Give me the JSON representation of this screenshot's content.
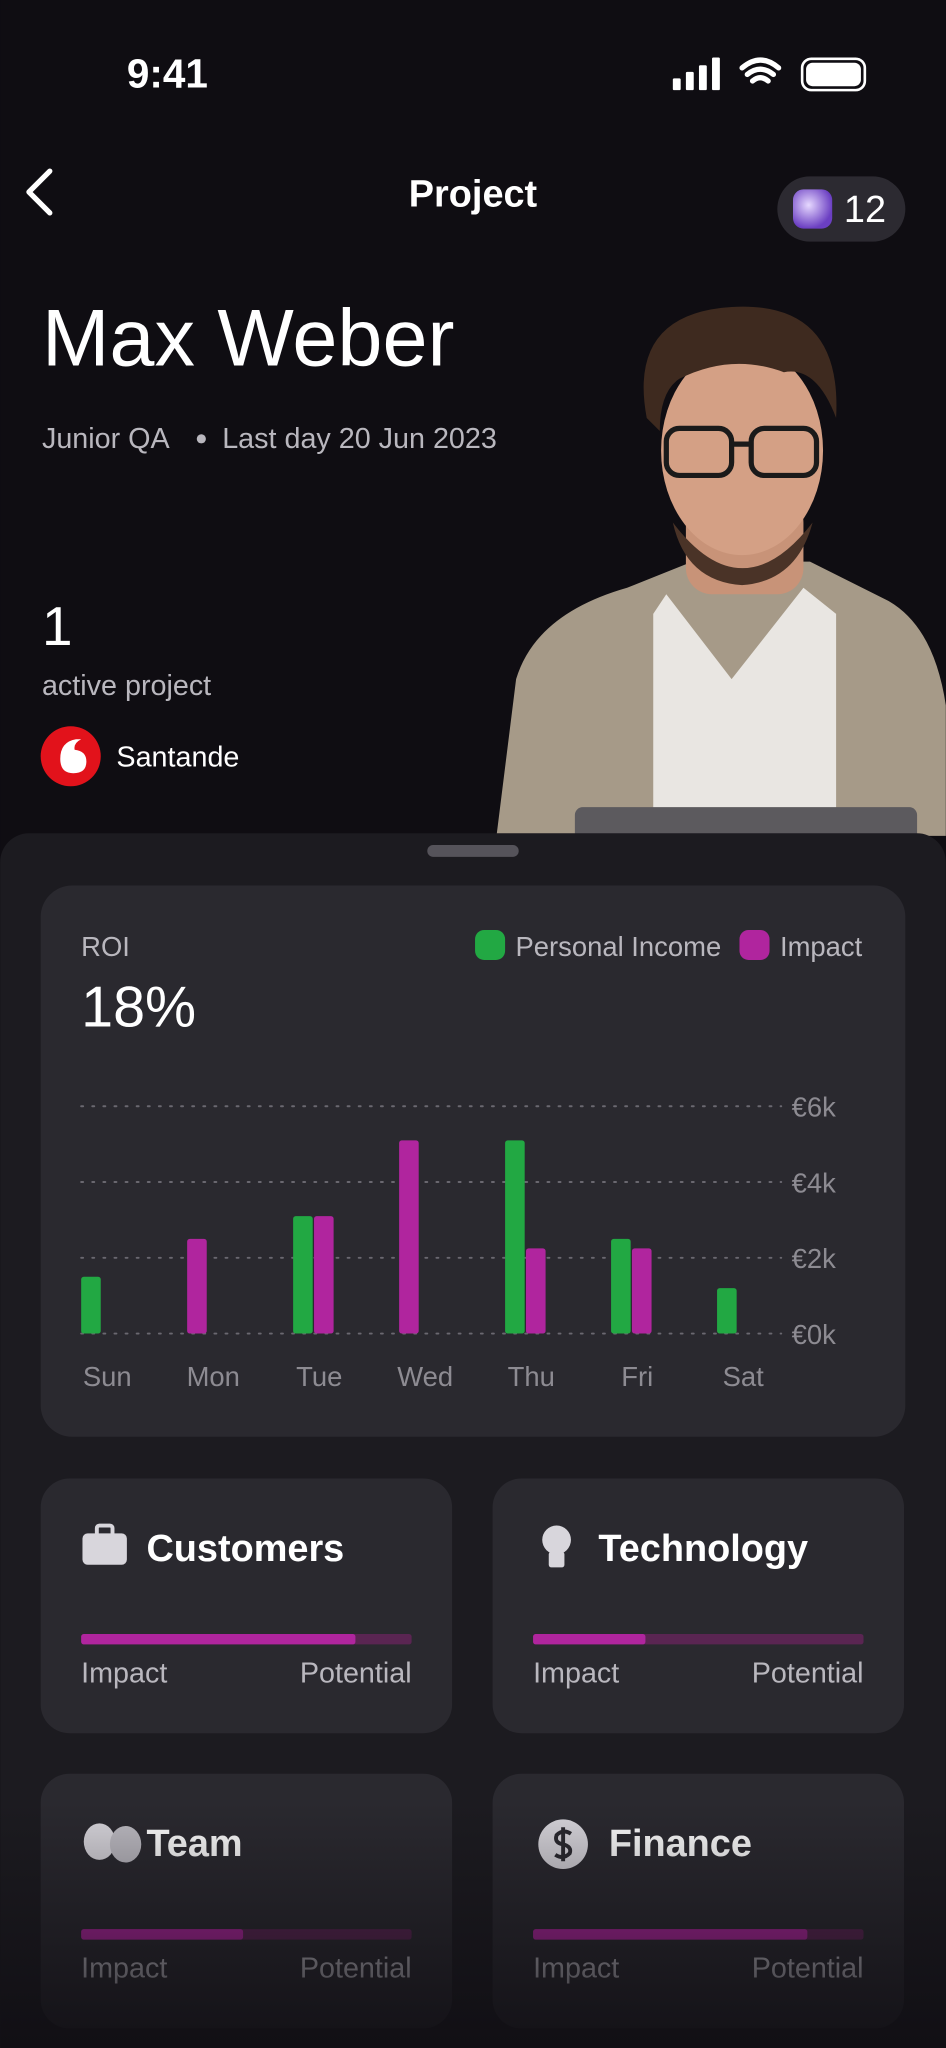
{
  "status_bar": {
    "time": "9:41"
  },
  "header": {
    "title": "Project",
    "badge_count": "12"
  },
  "profile": {
    "name": "Max Weber",
    "role": "Junior QA",
    "last_day": "Last day 20 Jun 2023",
    "active_count": "1",
    "active_label": "active project",
    "company": "Santande"
  },
  "chart_data": {
    "type": "bar",
    "title": "ROI",
    "subtitle": "18%",
    "categories": [
      "Sun",
      "Mon",
      "Tue",
      "Wed",
      "Thu",
      "Fri",
      "Sat"
    ],
    "series": [
      {
        "name": "Personal Income",
        "color": "#22a843",
        "values": [
          1500,
          null,
          3100,
          null,
          5100,
          2500,
          1200
        ]
      },
      {
        "name": "Impact",
        "color": "#b0259e",
        "values": [
          null,
          2500,
          3100,
          5100,
          2250,
          2250,
          null
        ]
      }
    ],
    "ylim": [
      0,
      6000
    ],
    "yticks": [
      {
        "value": 0,
        "label": "€0k"
      },
      {
        "value": 2000,
        "label": "€2k"
      },
      {
        "value": 4000,
        "label": "€4k"
      },
      {
        "value": 6000,
        "label": "€6k"
      }
    ],
    "grid": true
  },
  "cards": [
    {
      "title": "Customers",
      "left_label": "Impact",
      "right_label": "Potential",
      "progress": 83
    },
    {
      "title": "Technology",
      "left_label": "Impact",
      "right_label": "Potential",
      "progress": 34
    },
    {
      "title": "Team",
      "left_label": "Impact",
      "right_label": "Potential",
      "progress": 49
    },
    {
      "title": "Finance",
      "left_label": "Impact",
      "right_label": "Potential",
      "progress": 83
    }
  ]
}
